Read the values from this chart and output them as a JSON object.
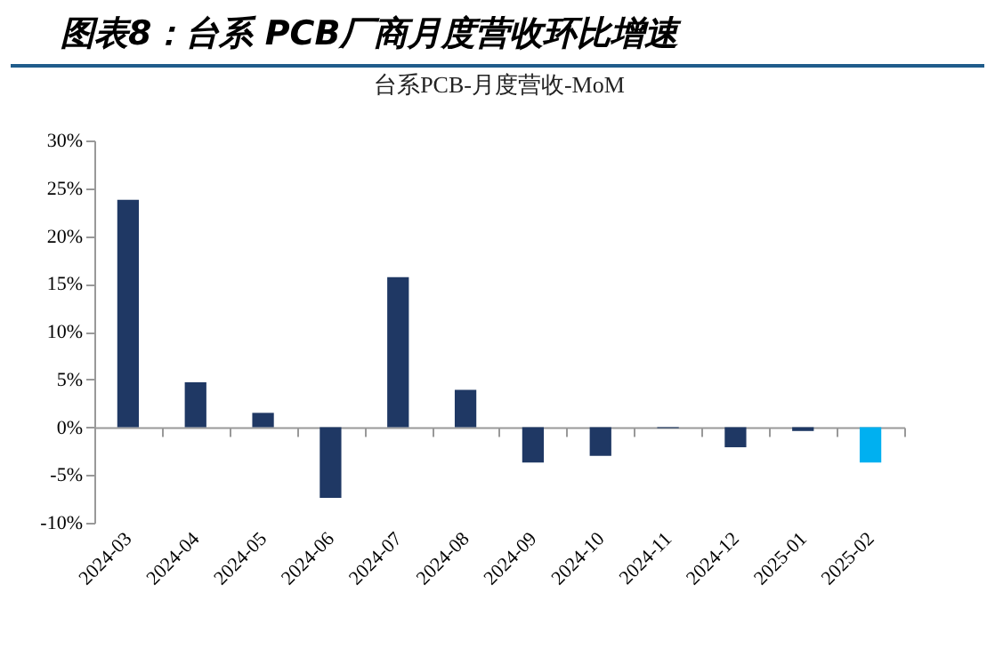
{
  "chart_data": {
    "type": "bar",
    "title": "图表8：台系 PCB厂商月度营收环比增速",
    "subtitle": "台系PCB-月度营收-MoM",
    "categories": [
      "2024-03",
      "2024-04",
      "2024-05",
      "2024-06",
      "2024-07",
      "2024-08",
      "2024-09",
      "2024-10",
      "2024-11",
      "2024-12",
      "2025-01",
      "2025-02"
    ],
    "values": [
      23.8,
      4.7,
      1.5,
      -7.4,
      15.7,
      3.9,
      -3.7,
      -3.0,
      -0.1,
      -2.1,
      -0.4,
      -3.7
    ],
    "colors": [
      "#1f3864",
      "#1f3864",
      "#1f3864",
      "#1f3864",
      "#1f3864",
      "#1f3864",
      "#1f3864",
      "#1f3864",
      "#1f3864",
      "#1f3864",
      "#1f3864",
      "#00b0f0"
    ],
    "ylim": [
      -10,
      30
    ],
    "yticks": [
      {
        "value": -10,
        "label": "-10%"
      },
      {
        "value": -5,
        "label": "-5%"
      },
      {
        "value": 0,
        "label": "0%"
      },
      {
        "value": 5,
        "label": "5%"
      },
      {
        "value": 10,
        "label": "10%"
      },
      {
        "value": 15,
        "label": "15%"
      },
      {
        "value": 20,
        "label": "20%"
      },
      {
        "value": 25,
        "label": "25%"
      },
      {
        "value": 30,
        "label": "30%"
      }
    ]
  }
}
